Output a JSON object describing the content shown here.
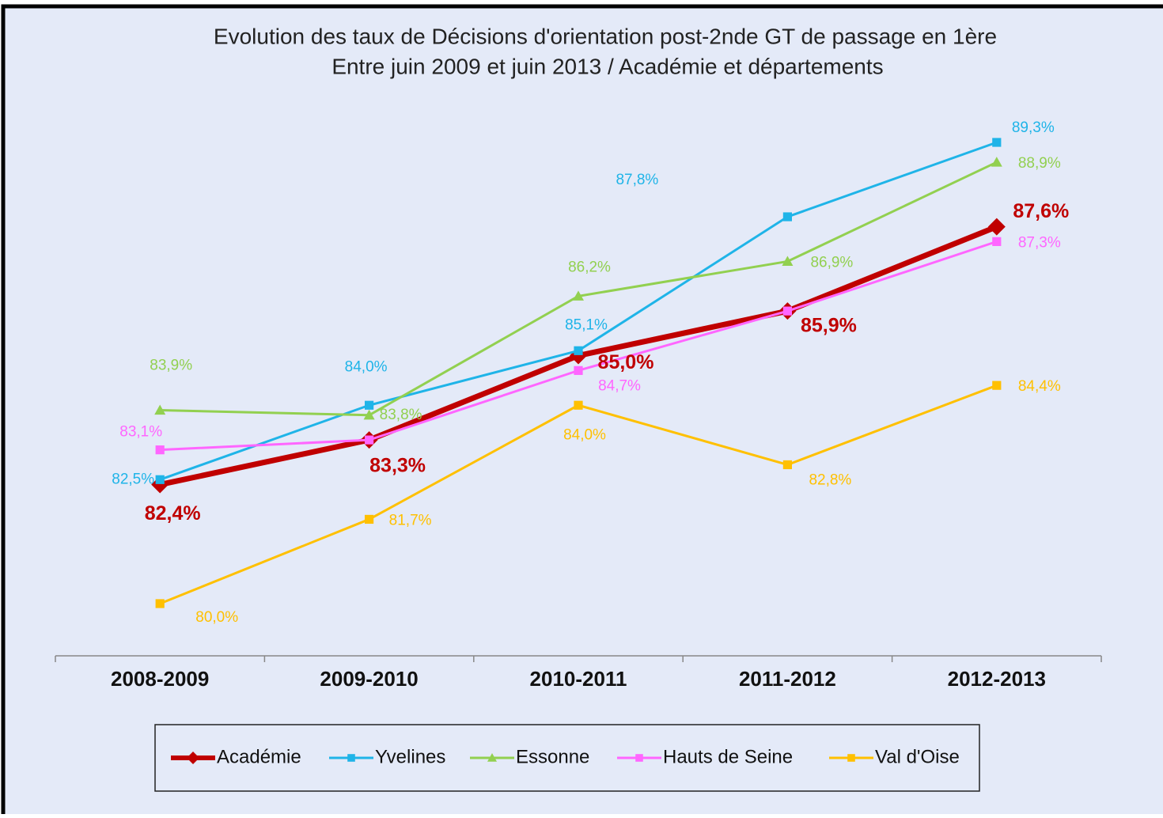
{
  "chart_data": {
    "type": "line",
    "title": "Evolution des taux de Décisions d'orientation post-2nde GT de passage en 1ère",
    "subtitle": "Entre juin 2009 et juin 2013 / Académie et départements",
    "categories": [
      "2008-2009",
      "2009-2010",
      "2010-2011",
      "2011-2012",
      "2012-2013"
    ],
    "series": [
      {
        "name": "Académie",
        "color": "#c00000",
        "marker": "diamond",
        "values": [
          82.4,
          83.3,
          85.0,
          85.9,
          87.6
        ],
        "value_labels": [
          "82,4%",
          "83,3%",
          "85,0%",
          "85,9%",
          "87,6%"
        ]
      },
      {
        "name": "Yvelines",
        "color": "#1fb4e8",
        "marker": "square",
        "values": [
          82.5,
          84.0,
          85.1,
          87.8,
          89.3
        ],
        "value_labels": [
          "82,5%",
          "84,0%",
          "85,1%",
          "87,8%",
          "89,3%"
        ]
      },
      {
        "name": "Essonne",
        "color": "#92d050",
        "marker": "triangle",
        "values": [
          83.9,
          83.8,
          86.2,
          86.9,
          88.9
        ],
        "value_labels": [
          "83,9%",
          "83,8%",
          "86,2%",
          "86,9%",
          "88,9%"
        ]
      },
      {
        "name": "Hauts de Seine",
        "color": "#ff66ff",
        "marker": "square",
        "values": [
          83.1,
          83.3,
          84.7,
          85.9,
          87.3
        ],
        "value_labels": [
          "83,1%",
          "83,3%",
          "84,7%",
          "85,9%",
          "87,3%"
        ]
      },
      {
        "name": "Val d'Oise",
        "color": "#ffc000",
        "marker": "square",
        "values": [
          80.0,
          81.7,
          84.0,
          82.8,
          84.4
        ],
        "value_labels": [
          "80,0%",
          "81,7%",
          "84,0%",
          "82,8%",
          "84,4%"
        ]
      }
    ]
  }
}
